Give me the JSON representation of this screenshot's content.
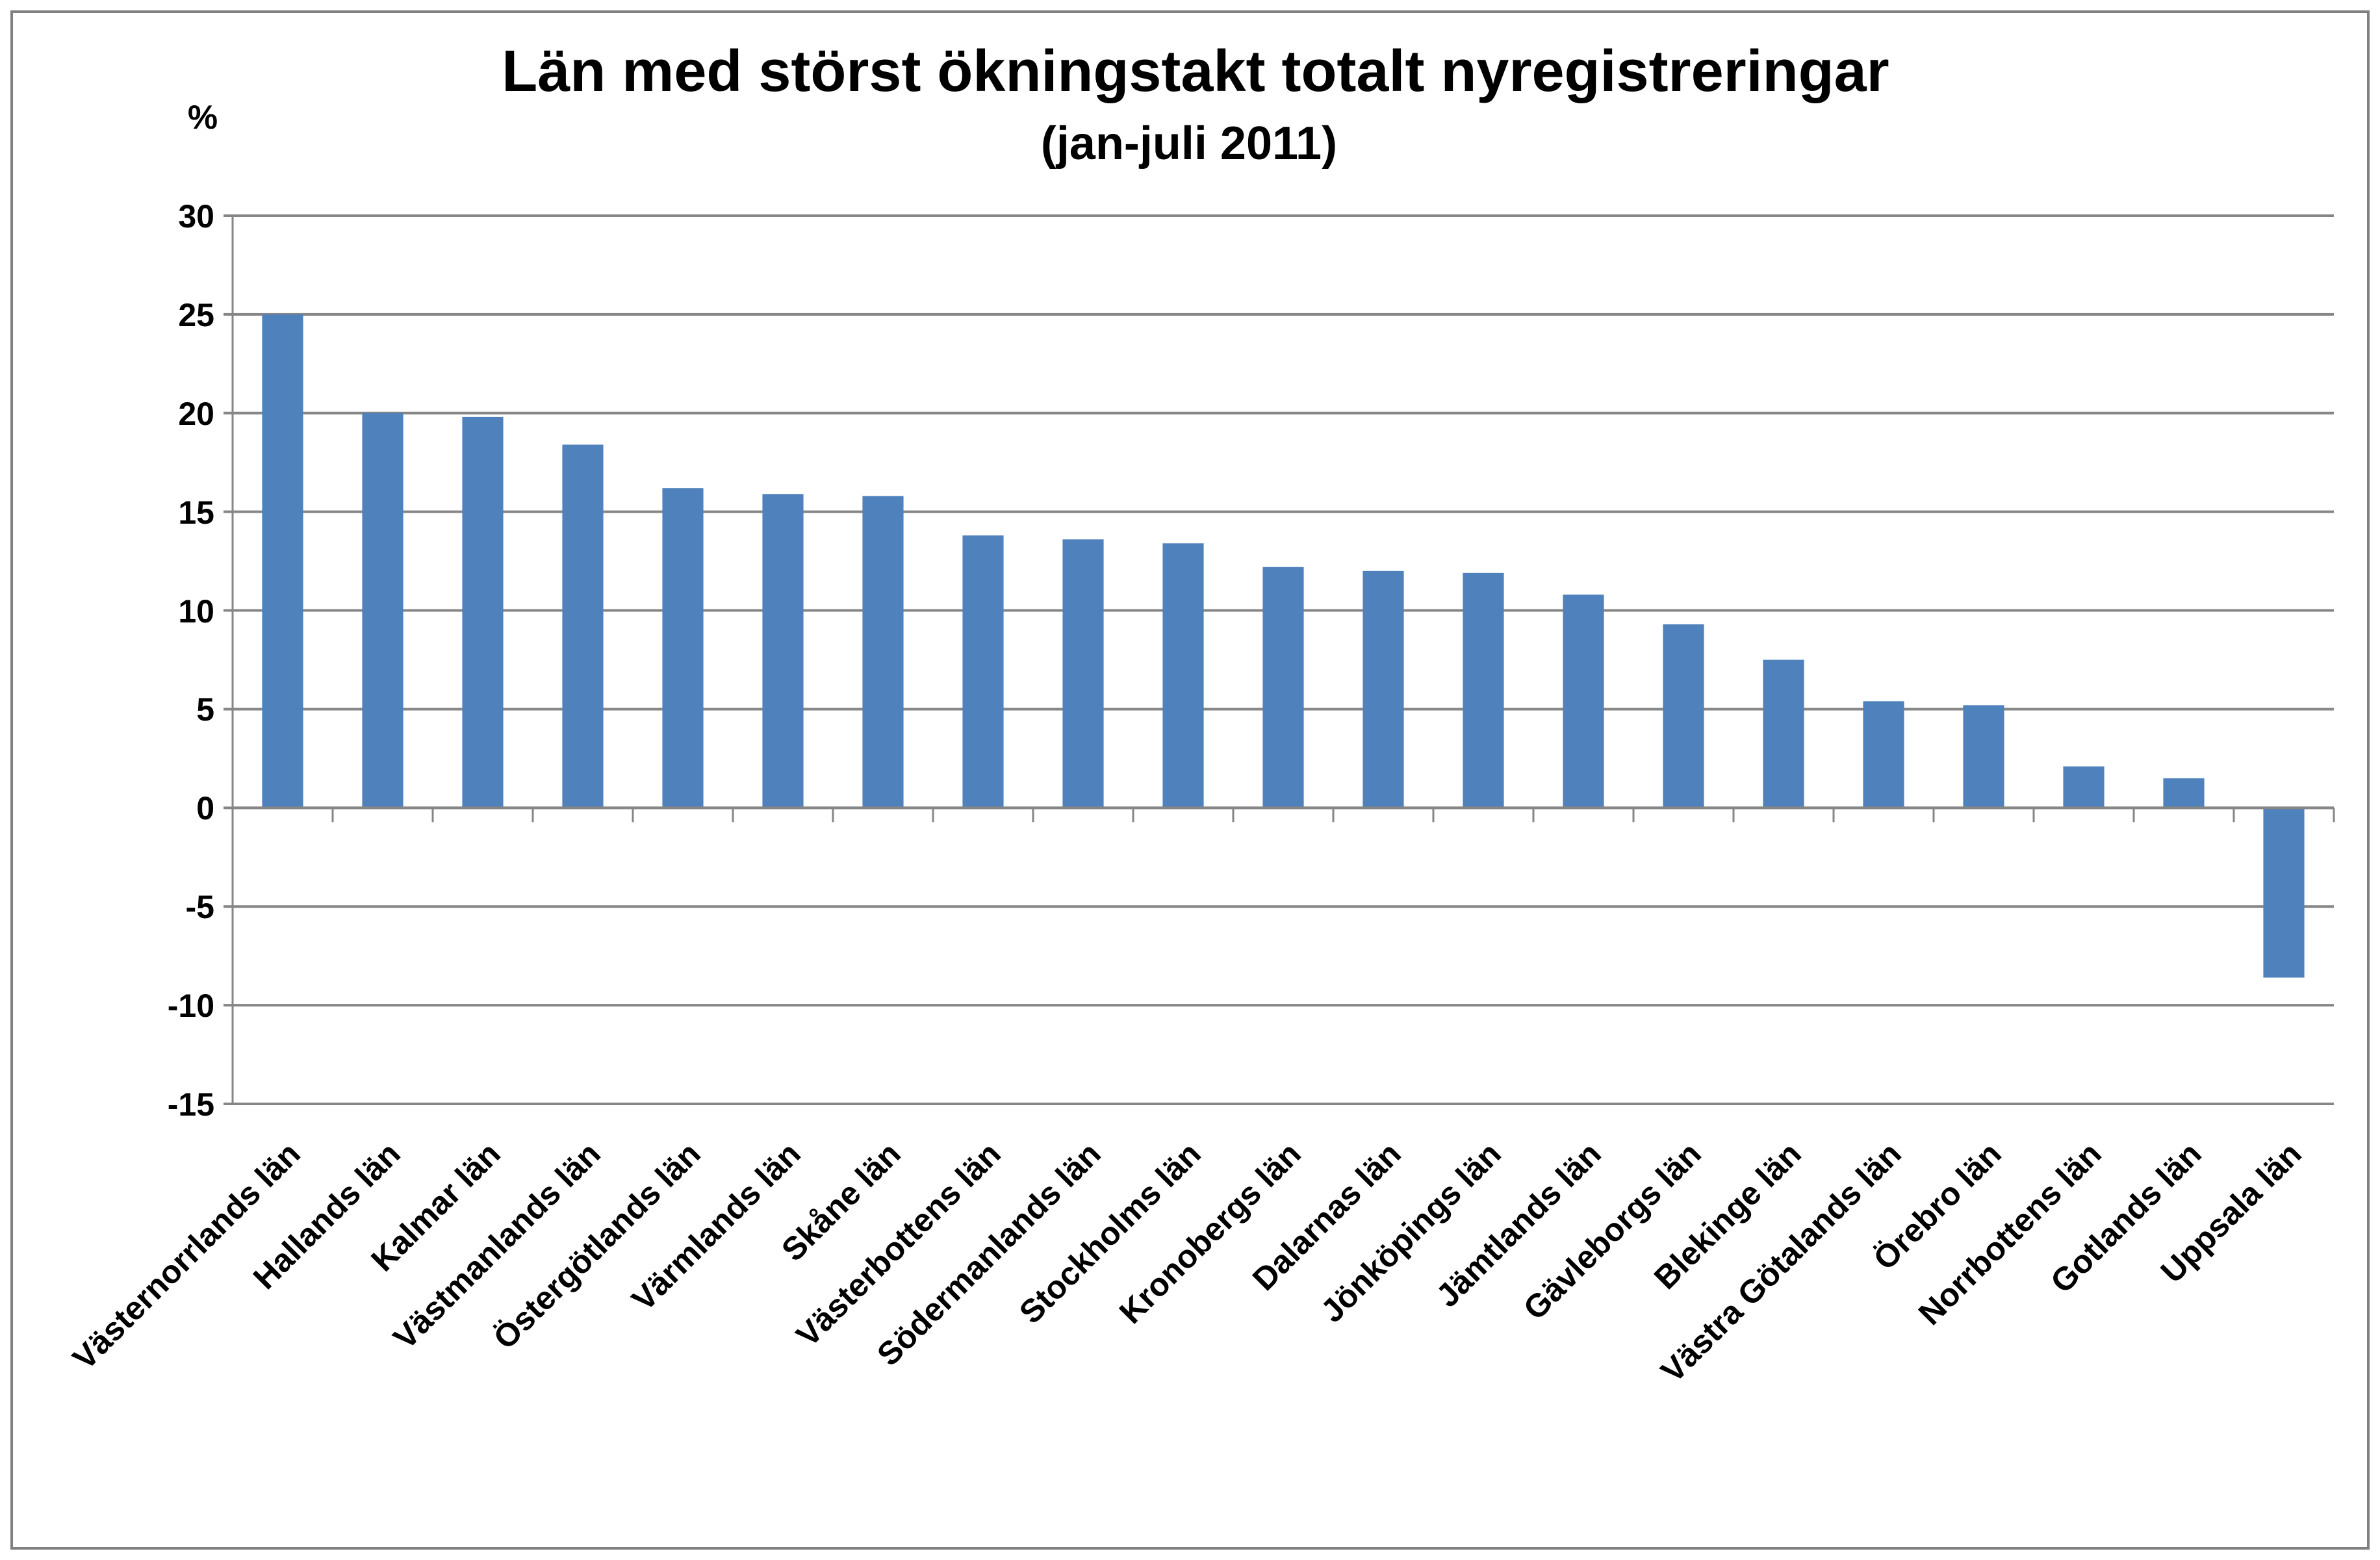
{
  "chart_data": {
    "type": "bar",
    "title": "Län med störst ökningstakt totalt nyregistreringar",
    "subtitle": "(jan-juli 2011)",
    "ylabel": "%",
    "xlabel": "",
    "ylim": [
      -15,
      30
    ],
    "yticks": [
      30,
      25,
      20,
      15,
      10,
      5,
      0,
      -5,
      -10,
      -15
    ],
    "grid": true,
    "bar_color": "#4F81BD",
    "categories": [
      "Västernorrlands län",
      "Hallands län",
      "Kalmar län",
      "Västmanlands län",
      "Östergötlands län",
      "Värmlands län",
      "Skåne län",
      "Västerbottens län",
      "Södermanlands län",
      "Stockholms län",
      "Kronobergs län",
      "Dalarnas län",
      "Jönköpings län",
      "Jämtlands län",
      "Gävleborgs län",
      "Blekinge län",
      "Västra Götalands län",
      "Örebro län",
      "Norrbottens län",
      "Gotlands län",
      "Uppsala län"
    ],
    "values": [
      25.0,
      20.0,
      19.8,
      18.4,
      16.2,
      15.9,
      15.8,
      13.8,
      13.6,
      13.4,
      12.2,
      12.0,
      11.9,
      10.8,
      9.3,
      7.5,
      5.4,
      5.2,
      2.1,
      1.5,
      -8.6
    ]
  }
}
